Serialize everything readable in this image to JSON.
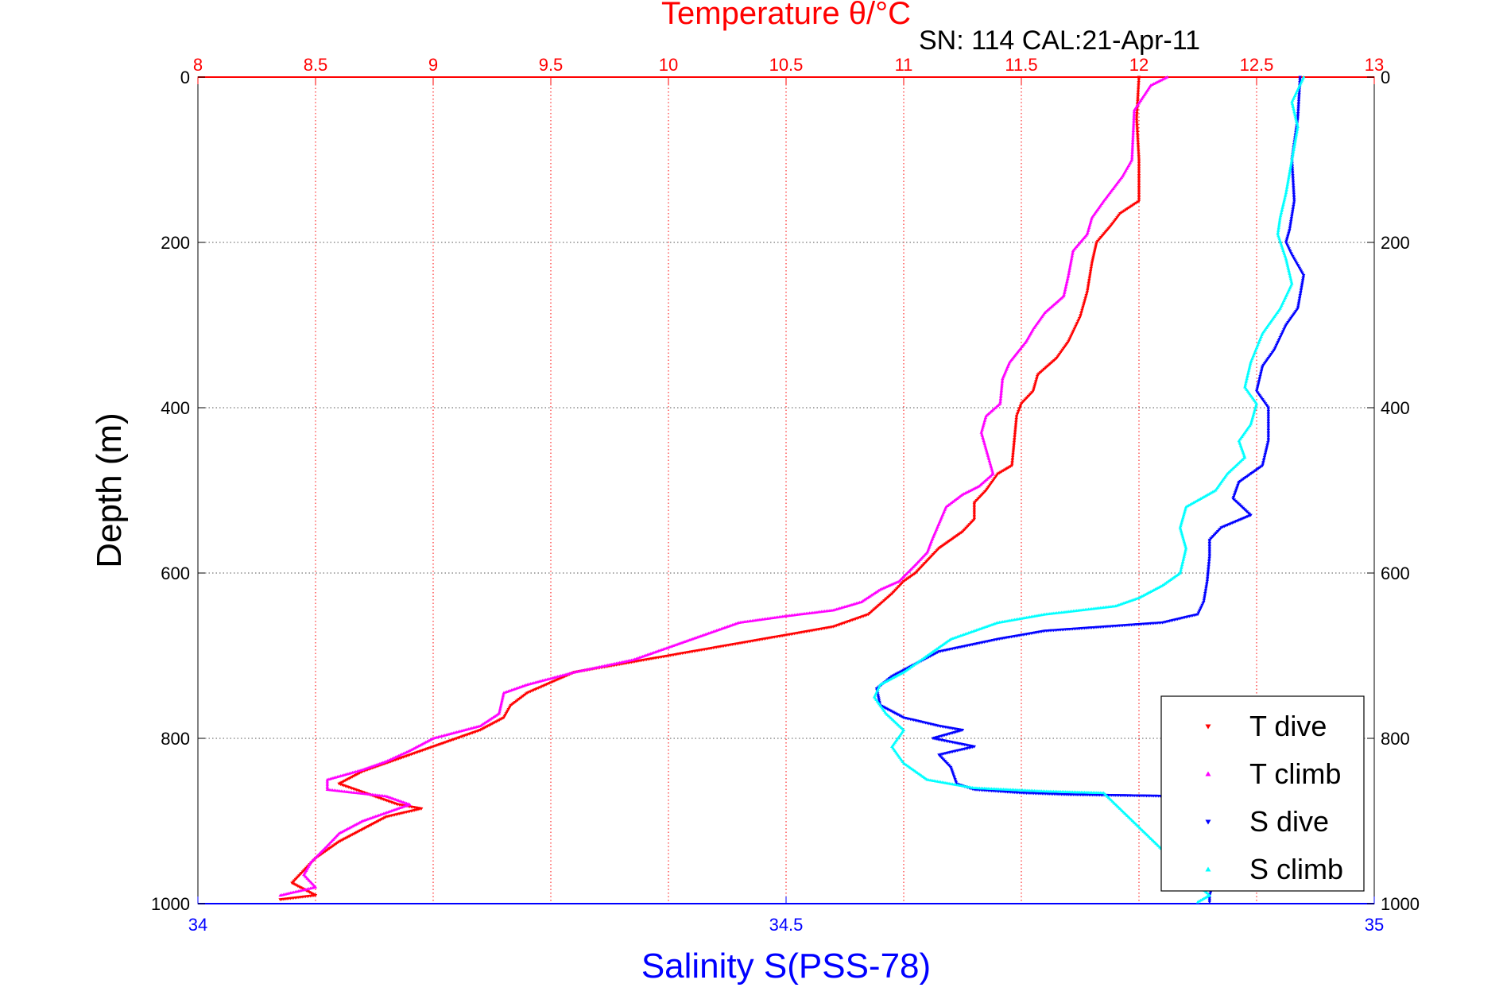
{
  "chart_data": {
    "type": "scatter",
    "title": "Temperature θ/°C",
    "annotation": "SN: 114  CAL:21-Apr-11",
    "xlabel_top": "Temperature θ/°C",
    "xlabel_bottom": "Salinity S(PSS-78)",
    "ylabel": "Depth (m)",
    "ylim": [
      0,
      1000
    ],
    "y_reversed": true,
    "temperature_axis": {
      "range": [
        8,
        13
      ],
      "ticks": [
        "8",
        "8.5",
        "9",
        "9.5",
        "10",
        "10.5",
        "11",
        "11.5",
        "12",
        "12.5",
        "13"
      ]
    },
    "salinity_axis": {
      "range": [
        34,
        35
      ],
      "ticks": [
        "34",
        "34.5",
        "35"
      ]
    },
    "depth_ticks": [
      "0",
      "200",
      "400",
      "600",
      "800",
      "1000"
    ],
    "grid": true,
    "legend_position": "bottom-right",
    "series": [
      {
        "name": "T dive",
        "axis": "temperature",
        "color": "#ff0000",
        "marker": "triangle-down",
        "points": [
          [
            12,
            0
          ],
          [
            11.99,
            50
          ],
          [
            12,
            100
          ],
          [
            12,
            150
          ],
          [
            11.92,
            165
          ],
          [
            11.88,
            180
          ],
          [
            11.82,
            200
          ],
          [
            11.8,
            225
          ],
          [
            11.78,
            260
          ],
          [
            11.75,
            290
          ],
          [
            11.7,
            320
          ],
          [
            11.65,
            340
          ],
          [
            11.57,
            360
          ],
          [
            11.55,
            380
          ],
          [
            11.5,
            395
          ],
          [
            11.48,
            410
          ],
          [
            11.47,
            440
          ],
          [
            11.46,
            470
          ],
          [
            11.4,
            480
          ],
          [
            11.35,
            500
          ],
          [
            11.3,
            515
          ],
          [
            11.3,
            535
          ],
          [
            11.25,
            550
          ],
          [
            11.2,
            560
          ],
          [
            11.15,
            570
          ],
          [
            11.1,
            585
          ],
          [
            11.05,
            600
          ],
          [
            11,
            610
          ],
          [
            10.95,
            625
          ],
          [
            10.85,
            650
          ],
          [
            10.7,
            665
          ],
          [
            10.5,
            675
          ],
          [
            10.3,
            685
          ],
          [
            10,
            700
          ],
          [
            9.8,
            710
          ],
          [
            9.6,
            720
          ],
          [
            9.4,
            745
          ],
          [
            9.33,
            760
          ],
          [
            9.3,
            775
          ],
          [
            9.2,
            790
          ],
          [
            9.1,
            800
          ],
          [
            9,
            810
          ],
          [
            8.9,
            820
          ],
          [
            8.8,
            830
          ],
          [
            8.7,
            840
          ],
          [
            8.6,
            855
          ],
          [
            8.75,
            870
          ],
          [
            8.85,
            880
          ],
          [
            8.95,
            885
          ],
          [
            8.8,
            895
          ],
          [
            8.7,
            910
          ],
          [
            8.6,
            925
          ],
          [
            8.5,
            945
          ],
          [
            8.45,
            960
          ],
          [
            8.4,
            975
          ],
          [
            8.5,
            990
          ],
          [
            8.35,
            995
          ]
        ]
      },
      {
        "name": "T climb",
        "axis": "temperature",
        "color": "#ff00ff",
        "marker": "triangle-up",
        "points": [
          [
            12.12,
            0
          ],
          [
            12.05,
            10
          ],
          [
            11.98,
            40
          ],
          [
            11.97,
            100
          ],
          [
            11.93,
            120
          ],
          [
            11.85,
            150
          ],
          [
            11.8,
            170
          ],
          [
            11.78,
            190
          ],
          [
            11.72,
            210
          ],
          [
            11.7,
            240
          ],
          [
            11.68,
            265
          ],
          [
            11.6,
            285
          ],
          [
            11.55,
            305
          ],
          [
            11.52,
            320
          ],
          [
            11.45,
            345
          ],
          [
            11.42,
            365
          ],
          [
            11.41,
            395
          ],
          [
            11.35,
            410
          ],
          [
            11.33,
            430
          ],
          [
            11.36,
            460
          ],
          [
            11.38,
            480
          ],
          [
            11.32,
            495
          ],
          [
            11.25,
            505
          ],
          [
            11.18,
            520
          ],
          [
            11.15,
            540
          ],
          [
            11.12,
            560
          ],
          [
            11.1,
            575
          ],
          [
            11.05,
            590
          ],
          [
            10.98,
            610
          ],
          [
            10.9,
            620
          ],
          [
            10.82,
            635
          ],
          [
            10.7,
            645
          ],
          [
            10.5,
            652
          ],
          [
            10.3,
            660
          ],
          [
            10.15,
            675
          ],
          [
            10,
            690
          ],
          [
            9.85,
            705
          ],
          [
            9.6,
            720
          ],
          [
            9.4,
            735
          ],
          [
            9.3,
            745
          ],
          [
            9.28,
            770
          ],
          [
            9.2,
            785
          ],
          [
            9,
            800
          ],
          [
            8.9,
            815
          ],
          [
            8.8,
            828
          ],
          [
            8.7,
            838
          ],
          [
            8.55,
            850
          ],
          [
            8.55,
            862
          ],
          [
            8.8,
            870
          ],
          [
            8.9,
            880
          ],
          [
            8.7,
            900
          ],
          [
            8.6,
            915
          ],
          [
            8.55,
            930
          ],
          [
            8.48,
            950
          ],
          [
            8.45,
            965
          ],
          [
            8.5,
            980
          ],
          [
            8.35,
            990
          ]
        ]
      },
      {
        "name": "S dive",
        "axis": "salinity",
        "color": "#0000ff",
        "marker": "triangle-down",
        "points": [
          [
            34.937,
            0
          ],
          [
            34.935,
            50
          ],
          [
            34.93,
            100
          ],
          [
            34.932,
            150
          ],
          [
            34.928,
            185
          ],
          [
            34.925,
            200
          ],
          [
            34.93,
            215
          ],
          [
            34.94,
            240
          ],
          [
            34.935,
            280
          ],
          [
            34.925,
            300
          ],
          [
            34.915,
            330
          ],
          [
            34.905,
            350
          ],
          [
            34.9,
            380
          ],
          [
            34.91,
            400
          ],
          [
            34.91,
            440
          ],
          [
            34.905,
            470
          ],
          [
            34.885,
            490
          ],
          [
            34.88,
            510
          ],
          [
            34.895,
            530
          ],
          [
            34.87,
            545
          ],
          [
            34.86,
            560
          ],
          [
            34.86,
            580
          ],
          [
            34.858,
            610
          ],
          [
            34.855,
            635
          ],
          [
            34.85,
            650
          ],
          [
            34.82,
            660
          ],
          [
            34.77,
            665
          ],
          [
            34.72,
            670
          ],
          [
            34.68,
            680
          ],
          [
            34.63,
            695
          ],
          [
            34.61,
            710
          ],
          [
            34.59,
            725
          ],
          [
            34.577,
            740
          ],
          [
            34.58,
            760
          ],
          [
            34.6,
            775
          ],
          [
            34.63,
            785
          ],
          [
            34.65,
            790
          ],
          [
            34.625,
            800
          ],
          [
            34.66,
            810
          ],
          [
            34.63,
            820
          ],
          [
            34.64,
            835
          ],
          [
            34.645,
            855
          ],
          [
            34.66,
            862
          ],
          [
            34.7,
            866
          ],
          [
            34.74,
            868
          ],
          [
            34.83,
            870
          ],
          [
            34.86,
            880
          ],
          [
            34.87,
            895
          ],
          [
            34.875,
            910
          ],
          [
            34.88,
            925
          ],
          [
            34.87,
            950
          ],
          [
            34.86,
            990
          ],
          [
            34.86,
            998
          ]
        ]
      },
      {
        "name": "S climb",
        "axis": "salinity",
        "color": "#00ffff",
        "marker": "triangle-up",
        "points": [
          [
            34.94,
            0
          ],
          [
            34.93,
            30
          ],
          [
            34.935,
            60
          ],
          [
            34.93,
            100
          ],
          [
            34.925,
            140
          ],
          [
            34.92,
            170
          ],
          [
            34.918,
            190
          ],
          [
            34.925,
            220
          ],
          [
            34.93,
            250
          ],
          [
            34.92,
            280
          ],
          [
            34.905,
            310
          ],
          [
            34.895,
            345
          ],
          [
            34.89,
            375
          ],
          [
            34.9,
            395
          ],
          [
            34.895,
            420
          ],
          [
            34.885,
            440
          ],
          [
            34.89,
            460
          ],
          [
            34.875,
            480
          ],
          [
            34.865,
            500
          ],
          [
            34.84,
            520
          ],
          [
            34.835,
            545
          ],
          [
            34.84,
            570
          ],
          [
            34.835,
            600
          ],
          [
            34.82,
            615
          ],
          [
            34.8,
            630
          ],
          [
            34.78,
            640
          ],
          [
            34.75,
            645
          ],
          [
            34.72,
            650
          ],
          [
            34.68,
            660
          ],
          [
            34.64,
            680
          ],
          [
            34.62,
            700
          ],
          [
            34.6,
            720
          ],
          [
            34.58,
            735
          ],
          [
            34.575,
            750
          ],
          [
            34.585,
            770
          ],
          [
            34.6,
            790
          ],
          [
            34.59,
            810
          ],
          [
            34.6,
            830
          ],
          [
            34.62,
            850
          ],
          [
            34.66,
            860
          ],
          [
            34.72,
            864
          ],
          [
            34.77,
            866
          ],
          [
            34.86,
            990
          ],
          [
            34.85,
            998
          ]
        ]
      }
    ]
  }
}
